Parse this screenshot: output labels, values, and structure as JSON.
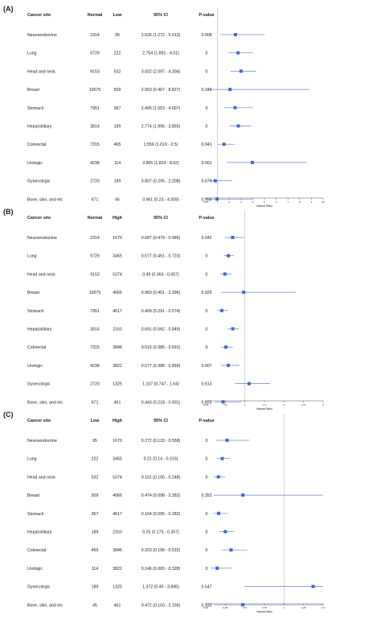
{
  "chart_data": [
    {
      "panel_label": "(A)",
      "type": "forest",
      "headers": [
        "Cancer site",
        "Normal",
        "Low",
        "95% CI",
        "P-value"
      ],
      "xlabel": "Hazard Ratio",
      "ref_line": 1,
      "xlim": [
        0,
        10
      ],
      "ticks": [
        "0.00",
        "1",
        "2",
        "3",
        "4",
        "5",
        "6",
        "7",
        "8",
        "9",
        "10"
      ],
      "grid": false,
      "rows": [
        {
          "site": "Neuroendocrine",
          "n1": "2314",
          "n2": "95",
          "ci": "2.526 (1.272 - 5.013)",
          "p": "0.008",
          "hr": 2.526,
          "lo": 1.272,
          "hi": 5.013
        },
        {
          "site": "Lung",
          "n1": "5729",
          "n2": "222",
          "ci": "2.754 (1.891 - 4.01)",
          "p": "0",
          "hr": 2.754,
          "lo": 1.891,
          "hi": 4.01
        },
        {
          "site": "Head and neck",
          "n1": "9153",
          "n2": "532",
          "ci": "3.002 (2.097 - 4.304)",
          "p": "0",
          "hr": 3.002,
          "lo": 2.097,
          "hi": 4.304
        },
        {
          "site": "Breast",
          "n1": "10075",
          "n2": "509",
          "ci": "2.063 (0.467 - 8.827)",
          "p": "0.348",
          "hr": 2.063,
          "lo": 0.467,
          "hi": 8.827
        },
        {
          "site": "Stomach",
          "n1": "7951",
          "n2": "367",
          "ci": "2.495 (1.553 - 4.007)",
          "p": "0",
          "hr": 2.495,
          "lo": 1.553,
          "hi": 4.007
        },
        {
          "site": "Hepatobiliary",
          "n1": "3814",
          "n2": "189",
          "ci": "2.774 (1.996 - 3.855)",
          "p": "0",
          "hr": 2.774,
          "lo": 1.996,
          "hi": 3.855
        },
        {
          "site": "Colorectal",
          "n1": "7315",
          "n2": "465",
          "ci": "1.556 (1.019 - 2.5)",
          "p": "0.041",
          "hr": 1.556,
          "lo": 1.019,
          "hi": 2.5
        },
        {
          "site": "Urologic",
          "n1": "4238",
          "n2": "114",
          "ci": "3.965 (1.824 - 8.62)",
          "p": "0.001",
          "hr": 3.965,
          "lo": 1.824,
          "hi": 8.62
        },
        {
          "site": "Gynecologic",
          "n1": "2720",
          "n2": "189",
          "ci": "0.807 (0.295 - 2.208)",
          "p": "0.676",
          "hr": 0.807,
          "lo": 0.295,
          "hi": 2.208
        },
        {
          "site": "Bone, skin, and etc",
          "n1": "671",
          "n2": "45",
          "ci": "0.961 (0.23 - 4.009)",
          "p": "0.956",
          "hr": 0.961,
          "lo": 0.23,
          "hi": 4.009
        }
      ]
    },
    {
      "panel_label": "(B)",
      "type": "forest",
      "headers": [
        "Cancer site",
        "Normal",
        "High",
        "95% CI",
        "P-value"
      ],
      "xlabel": "Hazard Ratio",
      "ref_line": 1,
      "xlim": [
        0,
        3
      ],
      "ticks": [
        "0.00",
        "0.5",
        "1",
        "1.5",
        "2",
        "2.5",
        "3"
      ],
      "grid": false,
      "rows": [
        {
          "site": "Neuroendocrine",
          "n1": "2314",
          "n2": "1670",
          "ci": "0.687 (0.479 - 0.986)",
          "p": "0.042",
          "hr": 0.687,
          "lo": 0.479,
          "hi": 0.986
        },
        {
          "site": "Lung",
          "n1": "5729",
          "n2": "3455",
          "ci": "0.577 (0.461 - 0.723)",
          "p": "0",
          "hr": 0.577,
          "lo": 0.461,
          "hi": 0.723
        },
        {
          "site": "Head and neck",
          "n1": "9153",
          "n2": "5374",
          "ci": "0.49 (0.365 - 0.657)",
          "p": "0",
          "hr": 0.49,
          "lo": 0.365,
          "hi": 0.657
        },
        {
          "site": "Breast",
          "n1": "10075",
          "n2": "4066",
          "ci": "0.969 (0.401 - 2.296)",
          "p": "0.925",
          "hr": 0.969,
          "lo": 0.401,
          "hi": 2.296
        },
        {
          "site": "Stomach",
          "n1": "7951",
          "n2": "4617",
          "ci": "0.409 (0.291 - 0.574)",
          "p": "0",
          "hr": 0.409,
          "lo": 0.291,
          "hi": 0.574
        },
        {
          "site": "Hepatobiliary",
          "n1": "3814",
          "n2": "2163",
          "ci": "0.691 (0.562 - 0.849)",
          "p": "0",
          "hr": 0.691,
          "lo": 0.562,
          "hi": 0.849
        },
        {
          "site": "Colorectal",
          "n1": "7315",
          "n2": "3846",
          "ci": "0.515 (0.385 - 0.691)",
          "p": "0",
          "hr": 0.515,
          "lo": 0.385,
          "hi": 0.691
        },
        {
          "site": "Urologic",
          "n1": "4238",
          "n2": "3822",
          "ci": "0.577 (0.388 - 0.859)",
          "p": "0.007",
          "hr": 0.577,
          "lo": 0.388,
          "hi": 0.859
        },
        {
          "site": "Gynecologic",
          "n1": "2720",
          "n2": "1325",
          "ci": "1.107 (0.747 - 1.64)",
          "p": "0.613",
          "hr": 1.107,
          "lo": 0.747,
          "hi": 1.64
        },
        {
          "site": "Bone, skin, and etc",
          "n1": "671",
          "n2": "461",
          "ci": "0.443 (0.218 - 0.901)",
          "p": "0.025",
          "hr": 0.443,
          "lo": 0.218,
          "hi": 0.901
        }
      ]
    },
    {
      "panel_label": "(C)",
      "type": "forest",
      "headers": [
        "Cancer site",
        "Low",
        "High",
        "95% CI",
        "P-value"
      ],
      "xlabel": "Hazard Ratio",
      "ref_line": 1,
      "xlim": [
        0,
        1.5
      ],
      "ticks": [
        "0.00",
        "0.25",
        "0.5",
        "0.75",
        "1",
        "1.25",
        "1.5"
      ],
      "grid": false,
      "rows": [
        {
          "site": "Neuroendocrine",
          "n1": "95",
          "n2": "1670",
          "ci": "0.272 (0.133 - 0.558)",
          "p": "0",
          "hr": 0.272,
          "lo": 0.133,
          "hi": 0.558
        },
        {
          "site": "Lung",
          "n1": "222",
          "n2": "3455",
          "ci": "0.21 (0.14 - 0.315)",
          "p": "0",
          "hr": 0.21,
          "lo": 0.14,
          "hi": 0.315
        },
        {
          "site": "Head and neck",
          "n1": "532",
          "n2": "5374",
          "ci": "0.161 (0.105 - 0.248)",
          "p": "0",
          "hr": 0.161,
          "lo": 0.105,
          "hi": 0.248
        },
        {
          "site": "Breast",
          "n1": "509",
          "n2": "4066",
          "ci": "0.474 (0.098 - 2.282)",
          "p": "0.352",
          "hr": 0.474,
          "lo": 0.098,
          "hi": 2.282
        },
        {
          "site": "Stomach",
          "n1": "367",
          "n2": "4617",
          "ci": "0.164 (0.095 - 0.282)",
          "p": "0",
          "hr": 0.164,
          "lo": 0.095,
          "hi": 0.282
        },
        {
          "site": "Hepatobiliary",
          "n1": "189",
          "n2": "2163",
          "ci": "0.25 (0.175 - 0.357)",
          "p": "0",
          "hr": 0.25,
          "lo": 0.175,
          "hi": 0.357
        },
        {
          "site": "Colorectal",
          "n1": "465",
          "n2": "3846",
          "ci": "0.323 (0.196 - 0.532)",
          "p": "0",
          "hr": 0.323,
          "lo": 0.196,
          "hi": 0.532
        },
        {
          "site": "Urologic",
          "n1": "114",
          "n2": "3822",
          "ci": "0.146 (0.065 - 0.328)",
          "p": "0",
          "hr": 0.146,
          "lo": 0.065,
          "hi": 0.328
        },
        {
          "site": "Gynecologic",
          "n1": "189",
          "n2": "1325",
          "ci": "1.372 (0.49 - 3.845)",
          "p": "0.547",
          "hr": 1.372,
          "lo": 0.49,
          "hi": 3.845
        },
        {
          "site": "Bone, skin, and etc",
          "n1": "45",
          "n2": "461",
          "ci": "0.472 (0.103 - 2.156)",
          "p": "0.333",
          "hr": 0.472,
          "lo": 0.103,
          "hi": 2.156
        }
      ]
    }
  ],
  "colors": {
    "ci_line": "#3b56d9",
    "marker": "#4169e1",
    "ref_line": "#c8c8c8",
    "axis": "#555555",
    "text": "#222222"
  }
}
